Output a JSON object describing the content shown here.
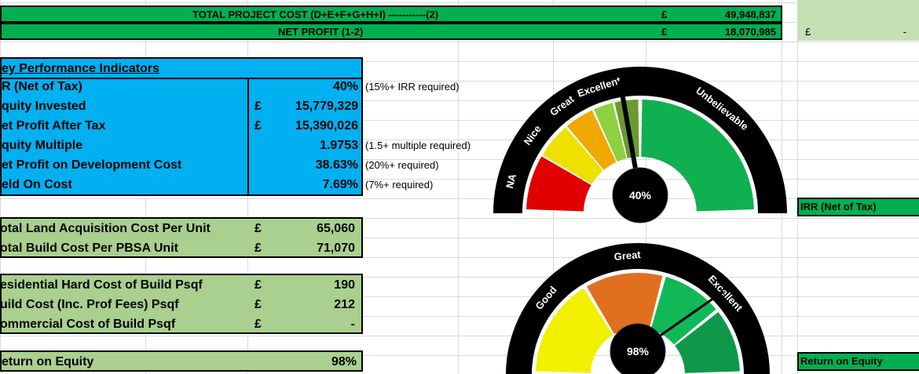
{
  "summary": {
    "total_project_cost": {
      "label": "TOTAL PROJECT COST (D+E+F+G+H+I) -----------(2)",
      "currency": "£",
      "value": "49,948,837"
    },
    "net_profit": {
      "label": "NET PROFIT (1-2)",
      "currency": "£",
      "value": "18,070,985"
    },
    "side_cell": {
      "currency": "£",
      "value": "-"
    }
  },
  "kpi": {
    "title": "ey Performance Indicators",
    "rows": [
      {
        "label": "R (Net of Tax)",
        "currency": "",
        "value": "40%",
        "note": "(15%+ IRR required)"
      },
      {
        "label": "quity Invested",
        "currency": "£",
        "value": "15,779,329",
        "note": ""
      },
      {
        "label": "et Profit After Tax",
        "currency": "£",
        "value": "15,390,026",
        "note": ""
      },
      {
        "label": "quity Multiple",
        "currency": "",
        "value": "1.9753",
        "note": "(1.5+ multiple required)"
      },
      {
        "label": "et Profit on Development Cost",
        "currency": "",
        "value": "38.63%",
        "note": "(20%+ required)"
      },
      {
        "label": "eld On Cost",
        "currency": "",
        "value": "7.69%",
        "note": "(7%+ required)"
      }
    ]
  },
  "unit_costs": [
    {
      "label": "otal Land Acquisition Cost Per Unit",
      "currency": "£",
      "value": "65,060"
    },
    {
      "label": "otal Build Cost Per PBSA Unit",
      "currency": "£",
      "value": "71,070"
    }
  ],
  "psqf_costs": [
    {
      "label": "esidential Hard Cost of Build Psqf",
      "currency": "£",
      "value": "190"
    },
    {
      "label": "uild Cost (Inc. Prof Fees) Psqf",
      "currency": "£",
      "value": "212"
    },
    {
      "label": "ommercial Cost of Build Psqf",
      "currency": "£",
      "value": "-"
    }
  ],
  "roe": {
    "label": "eturn on Equity",
    "value": "98%"
  },
  "gauges": [
    {
      "value_label": "40%",
      "value": 0.4,
      "title": "IRR (Net of Tax)",
      "bands": [
        "NA",
        "Nice",
        "Great",
        "Excellent",
        "Unbelievable"
      ],
      "colors": [
        "#e00000",
        "#f0e000",
        "#f0a800",
        "#8ed040",
        "#6a9a30",
        "#10b050"
      ]
    },
    {
      "value_label": "98%",
      "value": 0.98,
      "title": "Return on Equity",
      "bands": [
        "Good",
        "Great",
        "Excellent"
      ],
      "colors": [
        "#f0f000",
        "#e07020",
        "#10b858",
        "#10984a"
      ]
    }
  ]
}
